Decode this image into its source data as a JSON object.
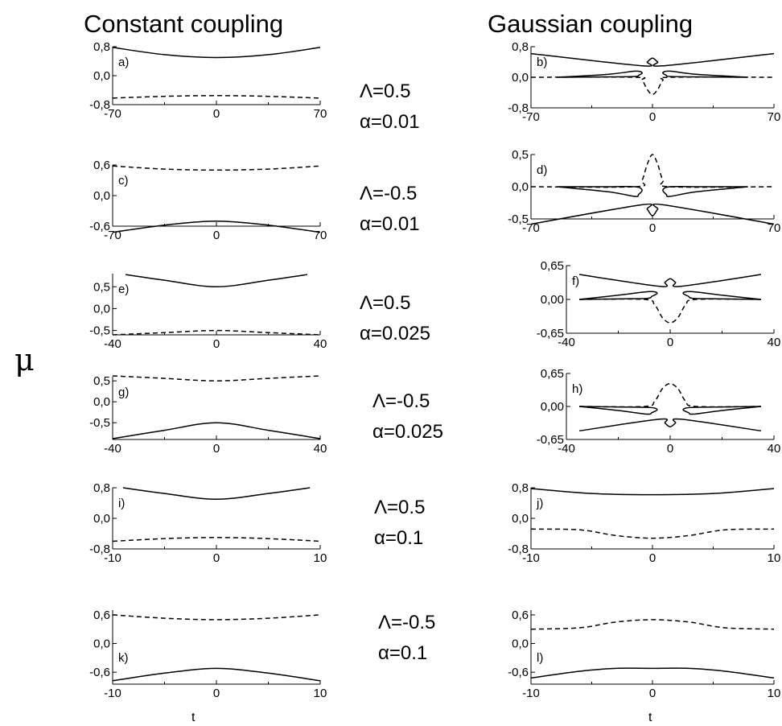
{
  "titles": {
    "left": "Constant coupling",
    "right": "Gaussian coupling"
  },
  "ylabel": "μ",
  "xlabel": "t",
  "params": [
    {
      "lambda": "Λ=0.5",
      "alpha": "α=0.01"
    },
    {
      "lambda": "Λ=-0.5",
      "alpha": "α=0.01"
    },
    {
      "lambda": "Λ=0.5",
      "alpha": "α=0.025"
    },
    {
      "lambda": "Λ=-0.5",
      "alpha": "α=0.025"
    },
    {
      "lambda": "Λ=0.5",
      "alpha": "α=0.1"
    },
    {
      "lambda": "Λ=-0.5",
      "alpha": "α=0.1"
    }
  ],
  "chart_data": [
    {
      "label": "a)",
      "type": "line",
      "xlim": [
        -70,
        70
      ],
      "ylim": [
        -0.8,
        0.8
      ],
      "xticks": [
        "-70",
        "0",
        "70"
      ],
      "yticks": [
        [
          "0,8",
          0.8
        ],
        [
          "0,0",
          0.0
        ],
        [
          "-0,8",
          -0.8
        ]
      ],
      "series": [
        {
          "style": "solid",
          "x": [
            -70,
            -35,
            0,
            35,
            70
          ],
          "y": [
            0.78,
            0.58,
            0.5,
            0.58,
            0.78
          ]
        },
        {
          "style": "dashed",
          "x": [
            -70,
            -35,
            0,
            35,
            70
          ],
          "y": [
            -0.62,
            -0.57,
            -0.55,
            -0.57,
            -0.62
          ]
        }
      ]
    },
    {
      "label": "b)",
      "type": "line",
      "xlim": [
        -70,
        70
      ],
      "ylim": [
        -0.8,
        0.8
      ],
      "xticks": [
        "-70",
        "0",
        "70"
      ],
      "yticks": [
        [
          "0,8",
          0.8
        ],
        [
          "0,0",
          0.0
        ],
        [
          "-0,8",
          -0.8
        ]
      ],
      "series": [
        {
          "style": "solid",
          "x": [
            -70,
            -6,
            -3,
            0,
            3,
            6,
            70
          ],
          "y": [
            0.62,
            0.3,
            0.4,
            0.5,
            0.4,
            0.3,
            0.62
          ]
        },
        {
          "style": "solid",
          "x": [
            -55,
            -25,
            -10,
            -6,
            -8,
            -10,
            -25,
            -55
          ],
          "y": [
            0.0,
            0.08,
            0.16,
            0.12,
            0.05,
            0.02,
            0.01,
            0.0
          ]
        },
        {
          "style": "solid",
          "x": [
            55,
            25,
            10,
            6,
            8,
            10,
            25,
            55
          ],
          "y": [
            0.0,
            0.08,
            0.16,
            0.12,
            0.05,
            0.02,
            0.01,
            0.0
          ]
        },
        {
          "style": "dashed",
          "x": [
            -70,
            -10,
            -6,
            -3,
            0,
            3,
            6,
            10,
            70
          ],
          "y": [
            0.0,
            0.0,
            -0.08,
            -0.32,
            -0.45,
            -0.32,
            -0.08,
            0.0,
            0.0
          ]
        }
      ]
    },
    {
      "label": "c)",
      "type": "line",
      "xlim": [
        -70,
        70
      ],
      "ylim": [
        -0.6,
        0.6
      ],
      "xticks": [
        "-70",
        "0",
        "70"
      ],
      "yticks": [
        [
          "0,6",
          0.6
        ],
        [
          "0,0",
          0.0
        ],
        [
          "-0,6",
          -0.6
        ]
      ],
      "series": [
        {
          "style": "dashed",
          "x": [
            -70,
            -35,
            0,
            35,
            70
          ],
          "y": [
            0.58,
            0.52,
            0.5,
            0.52,
            0.58
          ]
        },
        {
          "style": "solid",
          "x": [
            -70,
            -35,
            0,
            35,
            70
          ],
          "y": [
            -0.72,
            -0.58,
            -0.5,
            -0.58,
            -0.72
          ]
        }
      ]
    },
    {
      "label": "d)",
      "type": "line",
      "xlim": [
        -70,
        70
      ],
      "ylim": [
        -0.5,
        0.5
      ],
      "xticks": [
        "-70",
        "0",
        "70"
      ],
      "yticks": [
        [
          "0,5",
          0.5
        ],
        [
          "0,0",
          0.0
        ],
        [
          "-0,5",
          -0.5
        ]
      ],
      "series": [
        {
          "style": "dashed",
          "x": [
            -70,
            -10,
            -6,
            -3,
            0,
            3,
            6,
            10,
            70
          ],
          "y": [
            0.0,
            0.0,
            0.1,
            0.35,
            0.5,
            0.35,
            0.1,
            0.0,
            0.0
          ]
        },
        {
          "style": "solid",
          "x": [
            -55,
            -25,
            -10,
            -6,
            -8,
            -10,
            -25,
            -55
          ],
          "y": [
            0.0,
            0.0,
            0.0,
            -0.05,
            -0.12,
            -0.15,
            -0.08,
            0.0
          ]
        },
        {
          "style": "solid",
          "x": [
            55,
            25,
            10,
            6,
            8,
            10,
            25,
            55
          ],
          "y": [
            0.0,
            0.0,
            0.0,
            -0.05,
            -0.12,
            -0.15,
            -0.08,
            0.0
          ]
        },
        {
          "style": "solid",
          "x": [
            -70,
            -6,
            -3,
            0,
            3,
            6,
            70
          ],
          "y": [
            -0.58,
            -0.28,
            -0.35,
            -0.45,
            -0.35,
            -0.28,
            -0.58
          ]
        }
      ]
    },
    {
      "label": "e)",
      "type": "line",
      "xlim": [
        -40,
        40
      ],
      "ylim": [
        -0.6,
        0.8
      ],
      "xticks": [
        "-40",
        "0",
        "40"
      ],
      "yticks": [
        [
          "0,5",
          0.5
        ],
        [
          "0,0",
          0.0
        ],
        [
          "-0,5",
          -0.5
        ]
      ],
      "series": [
        {
          "style": "solid",
          "x": [
            -35,
            -20,
            0,
            20,
            35
          ],
          "y": [
            0.78,
            0.65,
            0.5,
            0.65,
            0.78
          ]
        },
        {
          "style": "dashed",
          "x": [
            -40,
            -20,
            0,
            20,
            40
          ],
          "y": [
            -0.6,
            -0.55,
            -0.5,
            -0.55,
            -0.6
          ]
        }
      ]
    },
    {
      "label": "f)",
      "type": "line",
      "xlim": [
        -40,
        40
      ],
      "ylim": [
        -0.65,
        0.65
      ],
      "xticks": [
        "-40",
        "0",
        "40"
      ],
      "yticks": [
        [
          "0,65",
          0.65
        ],
        [
          "0,00",
          0.0
        ],
        [
          "-0,65",
          -0.65
        ]
      ],
      "series": [
        {
          "style": "solid",
          "x": [
            -35,
            -4,
            -2,
            0,
            2,
            4,
            35
          ],
          "y": [
            0.48,
            0.25,
            0.33,
            0.4,
            0.33,
            0.25,
            0.48
          ]
        },
        {
          "style": "solid",
          "x": [
            -35,
            -20,
            -8,
            -5,
            -7,
            -9,
            -20,
            -35
          ],
          "y": [
            0.0,
            0.08,
            0.15,
            0.12,
            0.06,
            0.02,
            0.01,
            0.0
          ]
        },
        {
          "style": "solid",
          "x": [
            35,
            20,
            8,
            5,
            7,
            9,
            20,
            35
          ],
          "y": [
            0.0,
            0.08,
            0.15,
            0.12,
            0.06,
            0.02,
            0.01,
            0.0
          ]
        },
        {
          "style": "dashed",
          "x": [
            -35,
            -10,
            -6,
            -3,
            0,
            3,
            6,
            10,
            35
          ],
          "y": [
            0.0,
            0.0,
            -0.1,
            -0.35,
            -0.45,
            -0.35,
            -0.1,
            0.0,
            0.0
          ]
        }
      ]
    },
    {
      "label": "g)",
      "type": "line",
      "xlim": [
        -40,
        40
      ],
      "ylim": [
        -0.9,
        0.6
      ],
      "xticks": [
        "-40",
        "0",
        "40"
      ],
      "yticks": [
        [
          "0,5",
          0.5
        ],
        [
          "0,0",
          0.0
        ],
        [
          "-0,5",
          -0.5
        ]
      ],
      "series": [
        {
          "style": "dashed",
          "x": [
            -40,
            -20,
            0,
            20,
            40
          ],
          "y": [
            0.62,
            0.56,
            0.5,
            0.56,
            0.62
          ]
        },
        {
          "style": "solid",
          "x": [
            -40,
            -20,
            0,
            20,
            40
          ],
          "y": [
            -0.88,
            -0.68,
            -0.5,
            -0.68,
            -0.88
          ]
        }
      ]
    },
    {
      "label": "h)",
      "type": "line",
      "xlim": [
        -40,
        40
      ],
      "ylim": [
        -0.65,
        0.65
      ],
      "xticks": [
        "-40",
        "0",
        "40"
      ],
      "yticks": [
        [
          "0,65",
          0.65
        ],
        [
          "0,00",
          0.0
        ],
        [
          "-0,65",
          -0.65
        ]
      ],
      "series": [
        {
          "style": "dashed",
          "x": [
            -35,
            -10,
            -6,
            -3,
            0,
            3,
            6,
            10,
            35
          ],
          "y": [
            0.0,
            0.0,
            0.1,
            0.35,
            0.45,
            0.35,
            0.1,
            0.0,
            0.0
          ]
        },
        {
          "style": "solid",
          "x": [
            -35,
            -20,
            -8,
            -5,
            -7,
            -9,
            -20,
            -35
          ],
          "y": [
            0.0,
            -0.01,
            -0.02,
            -0.06,
            -0.12,
            -0.15,
            -0.08,
            0.0
          ]
        },
        {
          "style": "solid",
          "x": [
            35,
            20,
            8,
            5,
            7,
            9,
            20,
            35
          ],
          "y": [
            0.0,
            -0.01,
            -0.02,
            -0.06,
            -0.12,
            -0.15,
            -0.08,
            0.0
          ]
        },
        {
          "style": "solid",
          "x": [
            -35,
            -4,
            -2,
            0,
            2,
            4,
            35
          ],
          "y": [
            -0.48,
            -0.25,
            -0.33,
            -0.4,
            -0.33,
            -0.25,
            -0.48
          ]
        }
      ]
    },
    {
      "label": "i)",
      "type": "line",
      "xlim": [
        -10,
        10
      ],
      "ylim": [
        -0.8,
        0.8
      ],
      "xticks": [
        "-10",
        "0",
        "10"
      ],
      "yticks": [
        [
          "0,8",
          0.8
        ],
        [
          "0,0",
          0.0
        ],
        [
          "-0,8",
          -0.8
        ]
      ],
      "series": [
        {
          "style": "solid",
          "x": [
            -9,
            -5,
            0,
            5,
            9
          ],
          "y": [
            0.8,
            0.65,
            0.5,
            0.65,
            0.8
          ]
        },
        {
          "style": "dashed",
          "x": [
            -10,
            -5,
            0,
            5,
            10
          ],
          "y": [
            -0.6,
            -0.53,
            -0.5,
            -0.53,
            -0.6
          ]
        }
      ]
    },
    {
      "label": "j)",
      "type": "line",
      "xlim": [
        -10,
        10
      ],
      "ylim": [
        -0.8,
        0.8
      ],
      "xticks": [
        "-10",
        "0",
        "10"
      ],
      "yticks": [
        [
          "0,8",
          0.8
        ],
        [
          "0,0",
          0.0
        ],
        [
          "-0,8",
          -0.8
        ]
      ],
      "series": [
        {
          "style": "solid",
          "x": [
            -10,
            -5,
            0,
            5,
            10
          ],
          "y": [
            0.78,
            0.65,
            0.62,
            0.65,
            0.78
          ]
        },
        {
          "style": "dashed",
          "x": [
            -10,
            -6,
            -3,
            0,
            3,
            6,
            10
          ],
          "y": [
            -0.28,
            -0.3,
            -0.45,
            -0.52,
            -0.45,
            -0.3,
            -0.28
          ]
        }
      ]
    },
    {
      "label": "k)",
      "type": "line",
      "xlim": [
        -10,
        10
      ],
      "ylim": [
        -0.85,
        0.7
      ],
      "xticks": [
        "-10",
        "0",
        "10"
      ],
      "yticks": [
        [
          "0,6",
          0.6
        ],
        [
          "0,0",
          0.0
        ],
        [
          "-0,6",
          -0.6
        ]
      ],
      "series": [
        {
          "style": "dashed",
          "x": [
            -10,
            -5,
            0,
            5,
            10
          ],
          "y": [
            0.6,
            0.53,
            0.5,
            0.53,
            0.6
          ]
        },
        {
          "style": "solid",
          "x": [
            -10,
            -5,
            0,
            5,
            10
          ],
          "y": [
            -0.78,
            -0.62,
            -0.52,
            -0.62,
            -0.78
          ]
        }
      ]
    },
    {
      "label": "l)",
      "type": "line",
      "xlim": [
        -10,
        10
      ],
      "ylim": [
        -0.85,
        0.7
      ],
      "xticks": [
        "-10",
        "0",
        "10"
      ],
      "yticks": [
        [
          "0,6",
          0.6
        ],
        [
          "0,0",
          0.0
        ],
        [
          "-0,6",
          -0.6
        ]
      ],
      "series": [
        {
          "style": "dashed",
          "x": [
            -10,
            -6,
            -3,
            0,
            3,
            6,
            10
          ],
          "y": [
            0.3,
            0.33,
            0.45,
            0.5,
            0.45,
            0.33,
            0.3
          ]
        },
        {
          "style": "solid",
          "x": [
            -10,
            -6,
            -3,
            0,
            3,
            6,
            10
          ],
          "y": [
            -0.72,
            -0.58,
            -0.52,
            -0.52,
            -0.52,
            -0.58,
            -0.72
          ]
        }
      ]
    }
  ]
}
